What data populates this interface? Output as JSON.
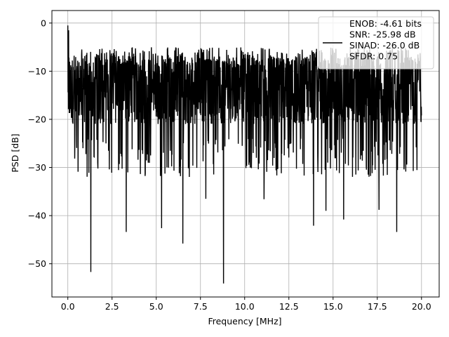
{
  "chart_data": {
    "type": "line",
    "title": "",
    "xlabel": "Frequency [MHz]",
    "ylabel": "PSD [dB]",
    "xlim": [
      -0.9,
      21.0
    ],
    "ylim": [
      -56.9,
      2.6
    ],
    "xticks": [
      0.0,
      2.5,
      5.0,
      7.5,
      10.0,
      12.5,
      15.0,
      17.5,
      20.0
    ],
    "xtick_labels": [
      "0.0",
      "2.5",
      "5.0",
      "7.5",
      "10.0",
      "12.5",
      "15.0",
      "17.5",
      "20.0"
    ],
    "yticks": [
      0,
      -10,
      -20,
      -30,
      -40,
      -50
    ],
    "ytick_labels": [
      "0",
      "−10",
      "−20",
      "−30",
      "−40",
      "−50"
    ],
    "grid": true,
    "legend_position": "top-right",
    "legend": [
      "ENOB: -4.61 bits",
      "SNR: -25.98 dB",
      "SINAD: -26.0 dB",
      "SFDR: 0.75"
    ],
    "series": [
      {
        "name": "ENOB: -4.61 bits",
        "color": "#000000",
        "x_range": [
          0.0,
          20.0
        ],
        "envelope_db": [
          -6,
          -20
        ],
        "peaks": [
          {
            "x": 0.0,
            "y": -0.5
          },
          {
            "x": 0.05,
            "y": -1.5
          },
          {
            "x": 1.3,
            "y": -51.7
          },
          {
            "x": 3.3,
            "y": -43.4
          },
          {
            "x": 5.3,
            "y": -42.6
          },
          {
            "x": 6.5,
            "y": -45.8
          },
          {
            "x": 8.8,
            "y": -54.1
          },
          {
            "x": 13.9,
            "y": -42.1
          },
          {
            "x": 15.6,
            "y": -40.8
          },
          {
            "x": 18.6,
            "y": -43.4
          },
          {
            "x": 7.8,
            "y": -36.5
          },
          {
            "x": 11.1,
            "y": -36.6
          },
          {
            "x": 17.6,
            "y": -38.8
          },
          {
            "x": 14.6,
            "y": -39.0
          }
        ]
      }
    ]
  }
}
